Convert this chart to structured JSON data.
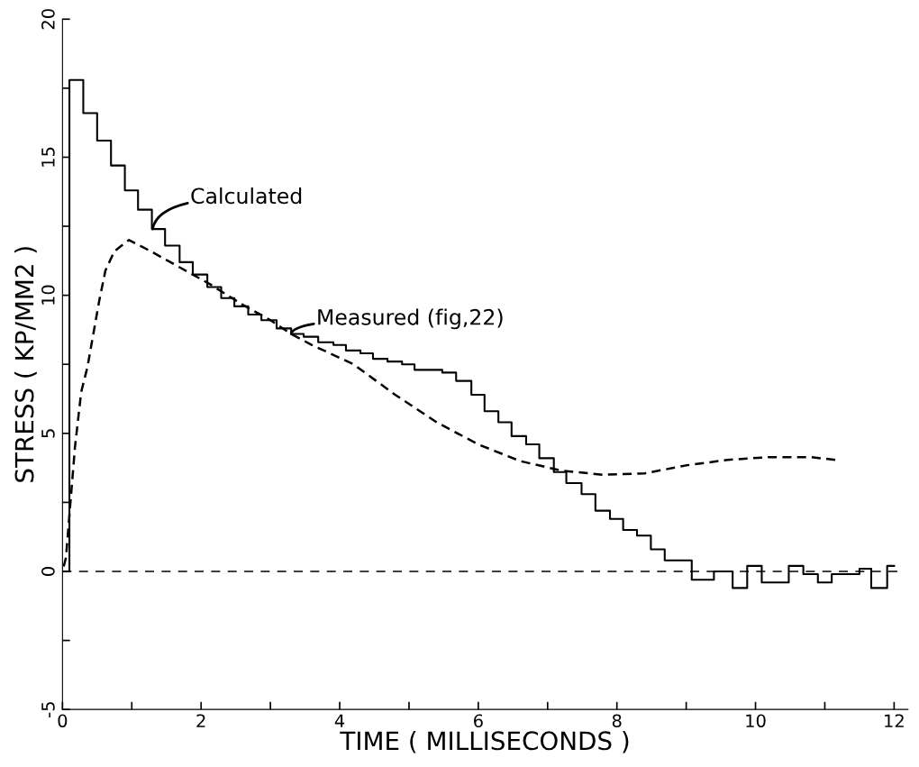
{
  "chart_data": {
    "type": "line",
    "xlabel": "TIME ( MILLISECONDS )",
    "ylabel": "STRESS ( KP/MM2 )",
    "xlim": [
      0,
      12.2
    ],
    "ylim": [
      -5,
      20
    ],
    "xticks": [
      0,
      {
        "value": 1,
        "label": null
      },
      2,
      {
        "value": 3,
        "label": null
      },
      4,
      {
        "value": 5,
        "label": null
      },
      6,
      {
        "value": 7,
        "label": null
      },
      8,
      {
        "value": 9,
        "label": null
      },
      10,
      {
        "value": 11,
        "label": null
      },
      12
    ],
    "yticks": [
      -5,
      {
        "value": -2.5,
        "label": null
      },
      0,
      {
        "value": 2.5,
        "label": null
      },
      5,
      {
        "value": 7.5,
        "label": null
      },
      10,
      {
        "value": 12.5,
        "label": null
      },
      15,
      {
        "value": 17.5,
        "label": null
      },
      20
    ],
    "grid": false,
    "legend": false,
    "marker": "none",
    "series": [
      {
        "type": "step",
        "color": "#000000",
        "line_style": "solid",
        "x": [
          0,
          0.1,
          0.3,
          0.5,
          0.7,
          0.9,
          1.09,
          1.29,
          1.48,
          1.69,
          1.88,
          2.09,
          2.29,
          2.48,
          2.68,
          2.87,
          3.09,
          3.3,
          3.48,
          3.69,
          3.91,
          4.09,
          4.3,
          4.48,
          4.69,
          4.9,
          5.08,
          5.29,
          5.48,
          5.68,
          5.9,
          6.09,
          6.29,
          6.48,
          6.69,
          6.88,
          7.09,
          7.27,
          7.49,
          7.69,
          7.9,
          8.09,
          8.29,
          8.49,
          8.69,
          9.08,
          9.29,
          9.4,
          9.67,
          9.88,
          10.09,
          10.48,
          10.69,
          10.9,
          11.1,
          11.5,
          11.67,
          11.9,
          12.0
        ],
        "values": [
          0,
          17.8,
          16.6,
          15.6,
          14.7,
          13.8,
          13.1,
          12.4,
          11.8,
          11.2,
          10.75,
          10.3,
          9.9,
          9.6,
          9.3,
          9.1,
          8.8,
          8.6,
          8.5,
          8.3,
          8.2,
          8.0,
          7.9,
          7.7,
          7.6,
          7.5,
          7.3,
          7.3,
          7.2,
          6.9,
          6.4,
          5.8,
          5.4,
          4.9,
          4.6,
          4.1,
          3.6,
          3.2,
          2.8,
          2.2,
          1.9,
          1.5,
          1.3,
          0.8,
          0.4,
          -0.3,
          -0.3,
          0,
          -0.6,
          0.2,
          -0.4,
          0.2,
          -0.1,
          -0.4,
          -0.1,
          0.1,
          -0.6,
          0.2,
          0.2
        ]
      },
      {
        "color": "#000000",
        "line_style": "dashed",
        "x": [
          0,
          0.05,
          0.18,
          0.27,
          0.36,
          0.53,
          0.62,
          0.75,
          0.96,
          1.27,
          1.7,
          2.13,
          2.57,
          3.0,
          3.3,
          3.6,
          4.2,
          4.8,
          5.4,
          6.0,
          6.6,
          7.2,
          7.8,
          8.4,
          9.0,
          9.6,
          10.2,
          10.8,
          11.15
        ],
        "values": [
          0,
          0.5,
          4.5,
          6.5,
          7.4,
          9.8,
          10.9,
          11.6,
          12.0,
          11.6,
          11.0,
          10.4,
          9.7,
          9.1,
          8.6,
          8.2,
          7.5,
          6.4,
          5.4,
          4.6,
          4.0,
          3.65,
          3.5,
          3.55,
          3.84,
          4.04,
          4.14,
          4.14,
          4.04
        ]
      }
    ],
    "ref_lines": [
      {
        "axis": "y",
        "value": 0,
        "line_style": "dashed",
        "color": "#000000"
      }
    ],
    "annotations": [
      {
        "text": "Calculated",
        "x": 1.3,
        "y": 12.4
      },
      {
        "text": "Measured (fig,22)",
        "x": 3.3,
        "y": 8.6
      }
    ]
  }
}
